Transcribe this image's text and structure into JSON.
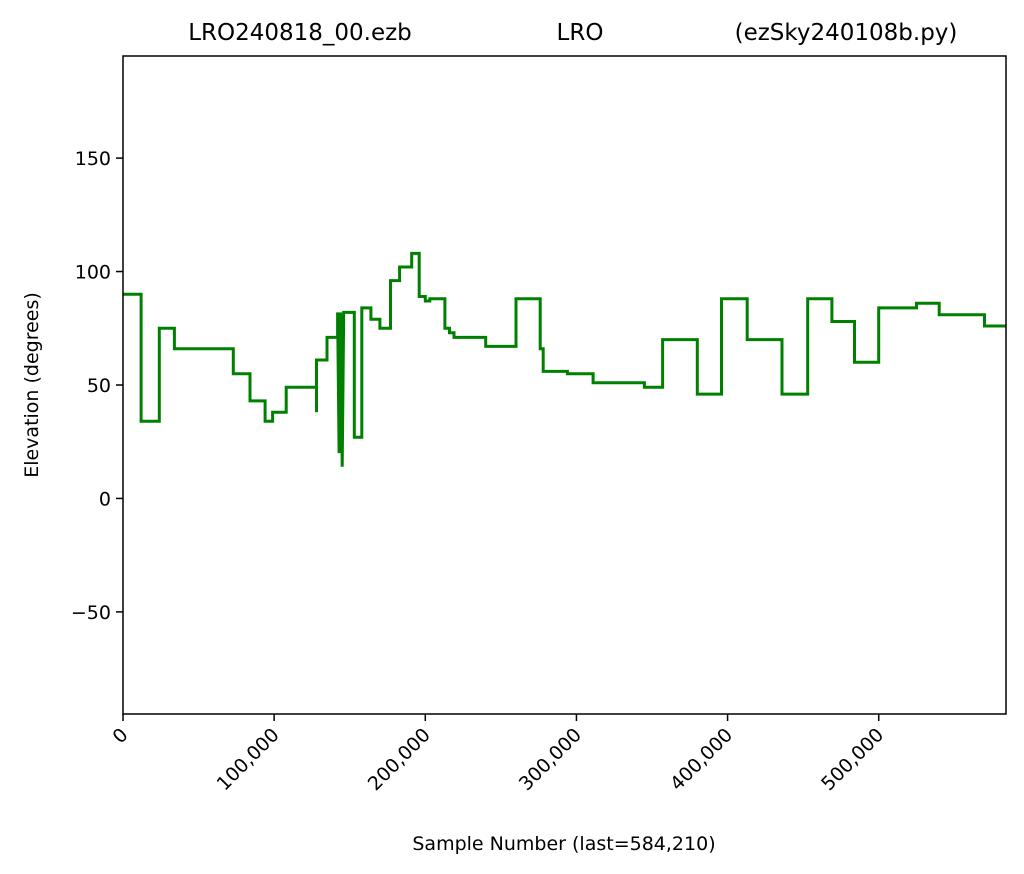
{
  "chart_data": {
    "type": "line",
    "title_parts": [
      "LRO240818_00.ezb",
      "LRO",
      "(ezSky240108b.py)"
    ],
    "xlabel": "Sample Number (last=584,210)",
    "ylabel": "Elevation (degrees)",
    "xlim": [
      0,
      584210
    ],
    "ylim": [
      -95,
      195
    ],
    "x_ticks": [
      0,
      100000,
      200000,
      300000,
      400000,
      500000
    ],
    "x_tick_labels": [
      "0",
      "100,000",
      "200,000",
      "300,000",
      "400,000",
      "500,000"
    ],
    "y_ticks": [
      -50,
      0,
      50,
      100,
      150
    ],
    "y_tick_labels": [
      "−50",
      "0",
      "50",
      "100",
      "150"
    ],
    "grid": false,
    "series": [
      {
        "color": "#008000",
        "step": true,
        "points": [
          [
            0,
            90
          ],
          [
            12000,
            90
          ],
          [
            12000,
            34
          ],
          [
            24000,
            34
          ],
          [
            24000,
            75
          ],
          [
            34000,
            75
          ],
          [
            34000,
            66
          ],
          [
            73000,
            66
          ],
          [
            73000,
            55
          ],
          [
            84000,
            55
          ],
          [
            84000,
            43
          ],
          [
            94000,
            43
          ],
          [
            94000,
            34
          ],
          [
            99000,
            34
          ],
          [
            99000,
            38
          ],
          [
            108000,
            38
          ],
          [
            108000,
            49
          ],
          [
            128000,
            49
          ],
          [
            128000,
            38
          ],
          [
            128000,
            61
          ],
          [
            135000,
            61
          ],
          [
            135000,
            71
          ],
          [
            142000,
            71
          ],
          [
            142000,
            82
          ],
          [
            143000,
            20
          ],
          [
            144000,
            82
          ],
          [
            145000,
            14
          ],
          [
            146000,
            82
          ],
          [
            153000,
            82
          ],
          [
            153000,
            27
          ],
          [
            158000,
            27
          ],
          [
            158000,
            84
          ],
          [
            164000,
            84
          ],
          [
            164000,
            79
          ],
          [
            170000,
            79
          ],
          [
            170000,
            75
          ],
          [
            177000,
            75
          ],
          [
            177000,
            96
          ],
          [
            183000,
            96
          ],
          [
            183000,
            102
          ],
          [
            191000,
            102
          ],
          [
            191000,
            108
          ],
          [
            196000,
            108
          ],
          [
            196000,
            89
          ],
          [
            200000,
            89
          ],
          [
            200000,
            87
          ],
          [
            203000,
            87
          ],
          [
            203000,
            88
          ],
          [
            213000,
            88
          ],
          [
            213000,
            75
          ],
          [
            216000,
            75
          ],
          [
            216000,
            73
          ],
          [
            219000,
            73
          ],
          [
            219000,
            71
          ],
          [
            240000,
            71
          ],
          [
            240000,
            67
          ],
          [
            260000,
            67
          ],
          [
            260000,
            88
          ],
          [
            276000,
            88
          ],
          [
            276000,
            66
          ],
          [
            278000,
            66
          ],
          [
            278000,
            56
          ],
          [
            294000,
            56
          ],
          [
            294000,
            55
          ],
          [
            311000,
            55
          ],
          [
            311000,
            51
          ],
          [
            345000,
            51
          ],
          [
            345000,
            49
          ],
          [
            357000,
            49
          ],
          [
            357000,
            70
          ],
          [
            380000,
            70
          ],
          [
            380000,
            46
          ],
          [
            396000,
            46
          ],
          [
            396000,
            88
          ],
          [
            413000,
            88
          ],
          [
            413000,
            70
          ],
          [
            436000,
            70
          ],
          [
            436000,
            46
          ],
          [
            453000,
            46
          ],
          [
            453000,
            88
          ],
          [
            469000,
            88
          ],
          [
            469000,
            78
          ],
          [
            484000,
            78
          ],
          [
            484000,
            60
          ],
          [
            500000,
            60
          ],
          [
            500000,
            84
          ],
          [
            525000,
            84
          ],
          [
            525000,
            86
          ],
          [
            540000,
            86
          ],
          [
            540000,
            81
          ],
          [
            570000,
            81
          ],
          [
            570000,
            76
          ],
          [
            584210,
            76
          ]
        ]
      }
    ]
  }
}
